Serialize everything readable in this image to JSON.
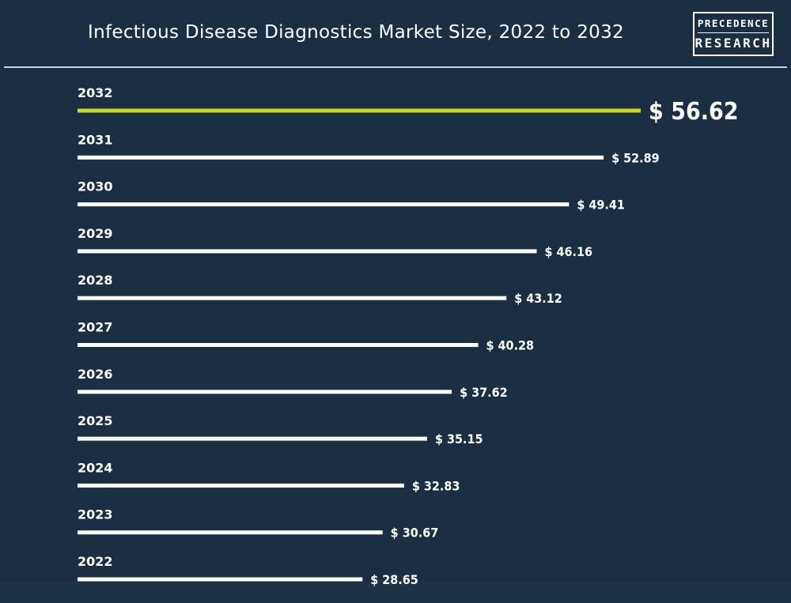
{
  "header": {
    "title": "Infectious Disease Diagnostics Market Size, 2022 to 2032",
    "logo_line1": "PRECEDENCE",
    "logo_line2": "RESEARCH"
  },
  "colors": {
    "background": "#1c2e42",
    "bar": "#ffffff",
    "highlight_bar": "#c6d92a",
    "text": "#ffffff"
  },
  "chart_data": {
    "type": "bar",
    "orientation": "horizontal",
    "title": "Infectious Disease Diagnostics Market Size, 2022 to 2032",
    "categories": [
      "2032",
      "2031",
      "2030",
      "2029",
      "2028",
      "2027",
      "2026",
      "2025",
      "2024",
      "2023",
      "2022"
    ],
    "values": [
      56.62,
      52.89,
      49.41,
      46.16,
      43.12,
      40.28,
      37.62,
      35.15,
      32.83,
      30.67,
      28.65
    ],
    "value_labels": [
      "$ 56.62",
      "$ 52.89",
      "$ 49.41",
      "$ 46.16",
      "$ 43.12",
      "$ 40.28",
      "$ 37.62",
      "$ 35.15",
      "$ 32.83",
      "$ 30.67",
      "$ 28.65"
    ],
    "highlight_category": "2032",
    "grid": false,
    "legend": "none"
  }
}
